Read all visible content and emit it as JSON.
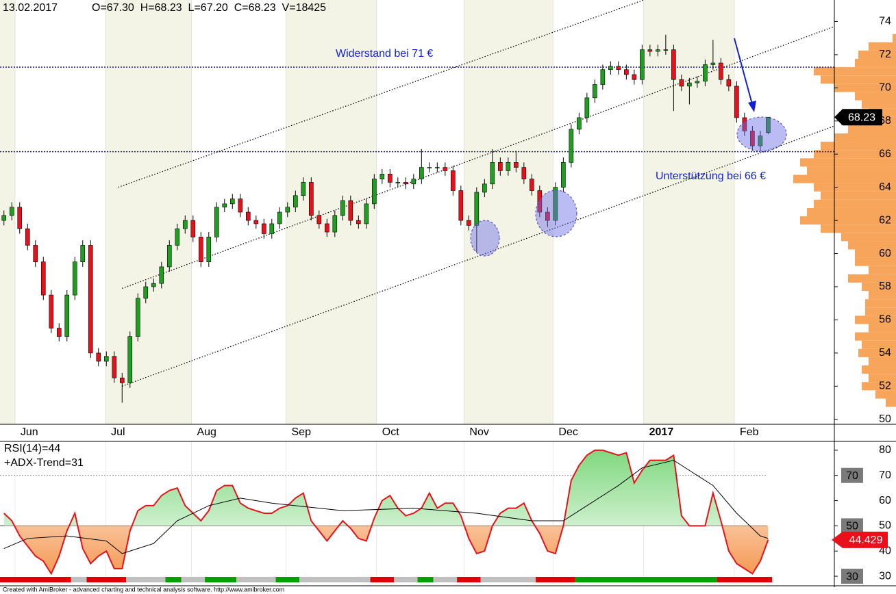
{
  "chart_data": [
    {
      "type": "candlestick",
      "title": "13.02.2017",
      "subtitle": "O=67.30  H=68.23  L=67.20  C=68.23  V=18425",
      "open": [
        62.0,
        62.3,
        62.8,
        61.5,
        60.5,
        59.5,
        57.5,
        55.5,
        55.0,
        57.5,
        59.5,
        60.5,
        54.0,
        53.5,
        53.8,
        52.5,
        52.2,
        55.0,
        57.3,
        58.0,
        58.2,
        59.2,
        60.5,
        61.5,
        62.0,
        61.0,
        59.5,
        61.0,
        62.8,
        63.0,
        63.3,
        62.5,
        62.0,
        61.8,
        61.2,
        61.8,
        62.5,
        62.8,
        63.5,
        64.3,
        62.3,
        61.8,
        61.3,
        62.3,
        63.2,
        62.0,
        61.8,
        63.0,
        64.5,
        64.8,
        64.3,
        64.3,
        64.2,
        64.5,
        65.2,
        65.2,
        65.2,
        65.0,
        63.8,
        62.0,
        61.7,
        63.7,
        64.2,
        65.5,
        65.0,
        65.5,
        65.2,
        64.5,
        63.8,
        62.5,
        62.0,
        64.0,
        65.5,
        67.5,
        68.2,
        69.4,
        70.2,
        71.1,
        71.3,
        71.1,
        70.8,
        70.5,
        72.3,
        72.2,
        72.3,
        72.3,
        70.5,
        70.1,
        70.3,
        70.4,
        71.4,
        71.5,
        70.5,
        70.1,
        68.2,
        67.4,
        66.5,
        67.3
      ],
      "high": [
        62.6,
        63.1,
        63.1,
        61.8,
        60.8,
        59.8,
        57.8,
        55.8,
        57.8,
        59.8,
        60.8,
        60.8,
        54.3,
        54.1,
        54.1,
        52.8,
        55.3,
        57.6,
        58.3,
        58.5,
        59.5,
        60.8,
        61.8,
        62.3,
        62.3,
        61.3,
        61.3,
        63.1,
        63.3,
        63.6,
        63.6,
        62.8,
        62.3,
        62.1,
        62.1,
        62.8,
        63.1,
        63.8,
        64.6,
        64.6,
        62.6,
        62.1,
        62.6,
        63.5,
        63.5,
        62.3,
        63.3,
        64.8,
        65.1,
        65.1,
        64.6,
        64.6,
        64.8,
        66.3,
        65.5,
        65.5,
        65.5,
        65.3,
        64.1,
        62.3,
        64.0,
        64.5,
        66.3,
        65.8,
        65.8,
        66.2,
        65.5,
        64.8,
        64.1,
        62.8,
        64.3,
        65.8,
        67.8,
        68.5,
        69.7,
        70.5,
        71.4,
        71.6,
        71.6,
        71.4,
        71.1,
        72.6,
        72.6,
        72.6,
        73.2,
        72.6,
        70.8,
        70.6,
        70.7,
        71.7,
        72.9,
        71.8,
        70.8,
        70.4,
        68.5,
        67.7,
        67.4,
        68.23
      ],
      "low": [
        61.7,
        62.0,
        61.2,
        60.2,
        59.2,
        57.2,
        55.2,
        54.7,
        54.7,
        57.2,
        59.2,
        53.7,
        53.2,
        53.2,
        52.2,
        51.0,
        51.9,
        54.7,
        57.0,
        57.7,
        57.9,
        58.9,
        60.2,
        61.2,
        60.7,
        59.2,
        59.2,
        60.7,
        62.5,
        62.7,
        62.2,
        61.7,
        61.5,
        60.9,
        60.9,
        61.5,
        62.2,
        62.5,
        63.2,
        62.0,
        61.5,
        61.0,
        61.0,
        62.0,
        61.7,
        61.5,
        61.5,
        62.7,
        64.2,
        64.0,
        64.0,
        63.9,
        63.9,
        64.2,
        64.9,
        64.9,
        64.7,
        63.5,
        61.7,
        61.4,
        60.1,
        63.4,
        63.9,
        64.7,
        64.7,
        64.9,
        64.2,
        63.5,
        62.2,
        61.6,
        61.7,
        63.7,
        65.2,
        67.2,
        67.9,
        69.1,
        69.9,
        70.8,
        70.8,
        70.5,
        70.2,
        70.2,
        71.9,
        71.9,
        72.0,
        68.6,
        69.8,
        69.0,
        70.0,
        70.1,
        71.1,
        70.2,
        69.8,
        67.9,
        67.1,
        66.2,
        66.2,
        67.2
      ],
      "close": [
        62.3,
        62.8,
        61.5,
        60.5,
        59.5,
        57.5,
        55.5,
        55.0,
        57.5,
        59.5,
        60.5,
        54.0,
        53.5,
        53.8,
        52.5,
        52.2,
        55.0,
        57.3,
        58.0,
        58.2,
        59.2,
        60.5,
        61.5,
        62.0,
        61.0,
        59.5,
        61.0,
        62.8,
        63.0,
        63.3,
        62.5,
        62.0,
        61.8,
        61.2,
        61.8,
        62.5,
        62.8,
        63.5,
        64.3,
        62.3,
        61.8,
        61.3,
        62.3,
        63.2,
        62.0,
        61.8,
        63.0,
        64.5,
        64.8,
        64.3,
        64.3,
        64.2,
        64.5,
        65.2,
        65.2,
        65.2,
        65.0,
        63.8,
        62.0,
        61.7,
        63.7,
        64.2,
        65.5,
        65.0,
        65.5,
        65.2,
        64.5,
        63.8,
        62.5,
        62.0,
        64.0,
        65.5,
        67.5,
        68.2,
        69.4,
        70.2,
        71.1,
        71.3,
        71.1,
        70.8,
        70.5,
        72.3,
        72.2,
        72.3,
        72.3,
        70.5,
        70.1,
        70.3,
        70.4,
        71.4,
        71.5,
        70.5,
        70.1,
        68.2,
        67.4,
        66.5,
        67.1,
        68.23
      ],
      "up_color": "#1f9e1f",
      "down_color": "#e8101a",
      "xlim": [
        -0.5,
        105.4
      ],
      "xticks": [
        {
          "value": 1.4,
          "label": "Jun"
        },
        {
          "value": 12.9,
          "label": "Jul"
        },
        {
          "value": 23.8,
          "label": "Aug"
        },
        {
          "value": 35.8,
          "label": "Sep"
        },
        {
          "value": 47.3,
          "label": "Oct"
        },
        {
          "value": 58.4,
          "label": "Nov"
        },
        {
          "value": 69.7,
          "label": "Dec"
        },
        {
          "value": 81.2,
          "label": "2017"
        },
        {
          "value": 92.7,
          "label": "Feb"
        }
      ],
      "ylim": [
        49.7,
        75.3
      ],
      "yticks": [
        50,
        52,
        54,
        56,
        58,
        60,
        62,
        64,
        66,
        68,
        70,
        72,
        74
      ],
      "annotations": [
        {
          "text": "Widerstand bei 71 €",
          "value": 71.25
        },
        {
          "text": "Unterstützung bei 66 €",
          "value": 66.15
        }
      ],
      "channels": [
        {
          "x": [
            14.5,
            81.2
          ],
          "y": [
            64.0,
            75.3
          ]
        },
        {
          "x": [
            15,
            105.4
          ],
          "y": [
            57.9,
            73.7
          ]
        },
        {
          "x": [
            15,
            105.4
          ],
          "y": [
            52.0,
            67.7
          ]
        }
      ],
      "volume_profile": {
        "levels": [
          51,
          51.5,
          52,
          52.5,
          53,
          53.5,
          54,
          54.5,
          55,
          55.5,
          56,
          56.5,
          57,
          57.5,
          58,
          58.5,
          59,
          59.5,
          60,
          60.5,
          61,
          61.5,
          62,
          62.5,
          63,
          63.5,
          64,
          64.5,
          65,
          65.5,
          66,
          66.5,
          67,
          67.5,
          68,
          68.5,
          69,
          69.5,
          70,
          70.5,
          71,
          71.5,
          72,
          72.5,
          73
        ],
        "values": [
          15,
          30,
          50,
          40,
          50,
          40,
          55,
          50,
          60,
          40,
          60,
          45,
          45,
          40,
          50,
          70,
          40,
          60,
          60,
          70,
          80,
          110,
          140,
          130,
          120,
          110,
          120,
          150,
          130,
          140,
          120,
          110,
          90,
          70,
          80,
          40,
          50,
          60,
          90,
          110,
          120,
          60,
          55,
          40,
          5
        ],
        "xlim": [
          0,
          150
        ],
        "color": "#f7a55a"
      }
    },
    {
      "type": "line",
      "title": "RSI(14)=44",
      "subtitle": "+ADX-Trend=31",
      "xlim": [
        -0.5,
        105.4
      ],
      "ylim": [
        27.3,
        83.5
      ],
      "yticks": [
        80,
        70,
        60,
        50,
        40,
        30
      ],
      "levels": [
        70,
        50,
        30
      ],
      "level_styles": [
        "dotted",
        "solid",
        "none"
      ],
      "series": [
        {
          "color": "#e8101a",
          "values": [
            55,
            52,
            46,
            42,
            38,
            36,
            31,
            38,
            48,
            55,
            41,
            35,
            38,
            40,
            33,
            33,
            48,
            56,
            58,
            58,
            62,
            64,
            65,
            58,
            55,
            52,
            56,
            64,
            66,
            66,
            59,
            57,
            56,
            55,
            55,
            57,
            58,
            61,
            63,
            52,
            48,
            44,
            48,
            52,
            49,
            45,
            44,
            53,
            60,
            62,
            57,
            54,
            55,
            57,
            63,
            57,
            59,
            59,
            54,
            45,
            39,
            40,
            50,
            55,
            57,
            57,
            59,
            52,
            47,
            40,
            39,
            50,
            68,
            74,
            78,
            80,
            80,
            79,
            78,
            79,
            67,
            72,
            76,
            76,
            76,
            78,
            54,
            50,
            50,
            50,
            63,
            52,
            40,
            35,
            33,
            31,
            36,
            44.429
          ]
        },
        {
          "color": "#000000",
          "x": [
            0,
            3,
            8,
            13,
            15,
            19,
            22,
            26,
            30,
            34,
            43,
            52,
            60,
            67,
            71,
            74,
            78,
            81,
            85,
            90,
            93,
            96,
            97
          ],
          "values": [
            41,
            45,
            46,
            44,
            39,
            43,
            52,
            58,
            61,
            59,
            56,
            57,
            55,
            52,
            52,
            58,
            66,
            73,
            76,
            66,
            55,
            46,
            45
          ]
        }
      ],
      "trend_bar": [
        {
          "from": 0,
          "to": 9,
          "color": "#e00000"
        },
        {
          "from": 9,
          "to": 11,
          "color": "#c0c0c0"
        },
        {
          "from": 11,
          "to": 16,
          "color": "#e00000"
        },
        {
          "from": 16,
          "to": 21,
          "color": "#c0c0c0"
        },
        {
          "from": 21,
          "to": 23,
          "color": "#00a000"
        },
        {
          "from": 23,
          "to": 26,
          "color": "#c0c0c0"
        },
        {
          "from": 26,
          "to": 30,
          "color": "#00a000"
        },
        {
          "from": 30,
          "to": 35,
          "color": "#c0c0c0"
        },
        {
          "from": 35,
          "to": 38,
          "color": "#00a000"
        },
        {
          "from": 38,
          "to": 47,
          "color": "#c0c0c0"
        },
        {
          "from": 47,
          "to": 50,
          "color": "#e00000"
        },
        {
          "from": 50,
          "to": 53,
          "color": "#c0c0c0"
        },
        {
          "from": 53,
          "to": 55,
          "color": "#00a000"
        },
        {
          "from": 55,
          "to": 58,
          "color": "#c0c0c0"
        },
        {
          "from": 58,
          "to": 61,
          "color": "#e00000"
        },
        {
          "from": 61,
          "to": 68,
          "color": "#c0c0c0"
        },
        {
          "from": 68,
          "to": 73,
          "color": "#e00000"
        },
        {
          "from": 73,
          "to": 91,
          "color": "#00a000"
        },
        {
          "from": 91,
          "to": 98,
          "color": "#e00000"
        }
      ]
    }
  ],
  "footer": "Created with AmiBroker - advanced charting and technical analysis software. http://www.amibroker.com"
}
